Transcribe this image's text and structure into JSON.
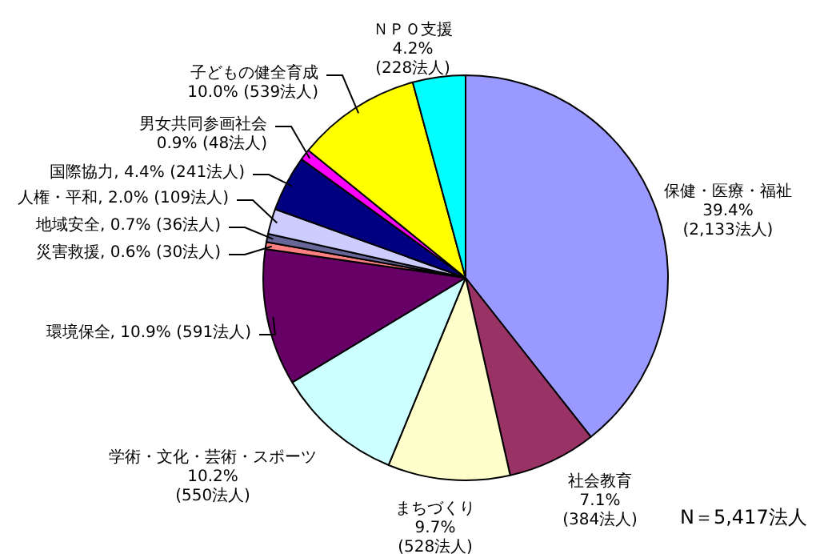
{
  "chart_data": {
    "type": "pie",
    "categories": [
      "保健・医療・福祉",
      "社会教育",
      "まちづくり",
      "学術・文化・芸術・スポーツ",
      "環境保全",
      "災害救援",
      "地域安全",
      "人権・平和",
      "国際協力",
      "男女共同参画社会",
      "子どもの健全育成",
      "ＮＰＯ支援"
    ],
    "values": [
      2133,
      384,
      528,
      550,
      591,
      30,
      36,
      109,
      241,
      48,
      539,
      228
    ],
    "colors": [
      "#9999ff",
      "#993366",
      "#ffffcc",
      "#ccffff",
      "#660066",
      "#ff8080",
      "#666699",
      "#ccccff",
      "#000080",
      "#ff00ff",
      "#ffff00",
      "#00ffff"
    ],
    "value_labels": [
      "39.4% (2,133法人)",
      "7.1% (384法人)",
      "9.7% (528法人)",
      "10.2% (550法人)",
      "10.9% (591法人)",
      "0.6% (30法人)",
      "0.7% (36法人)",
      "2.0% (109法人)",
      "4.4% (241法人)",
      "0.9% (48法人)",
      "10.0% (539法人)",
      "4.2% (228法人)"
    ],
    "annotations": [
      "N＝5,417法人"
    ],
    "legend": false
  }
}
